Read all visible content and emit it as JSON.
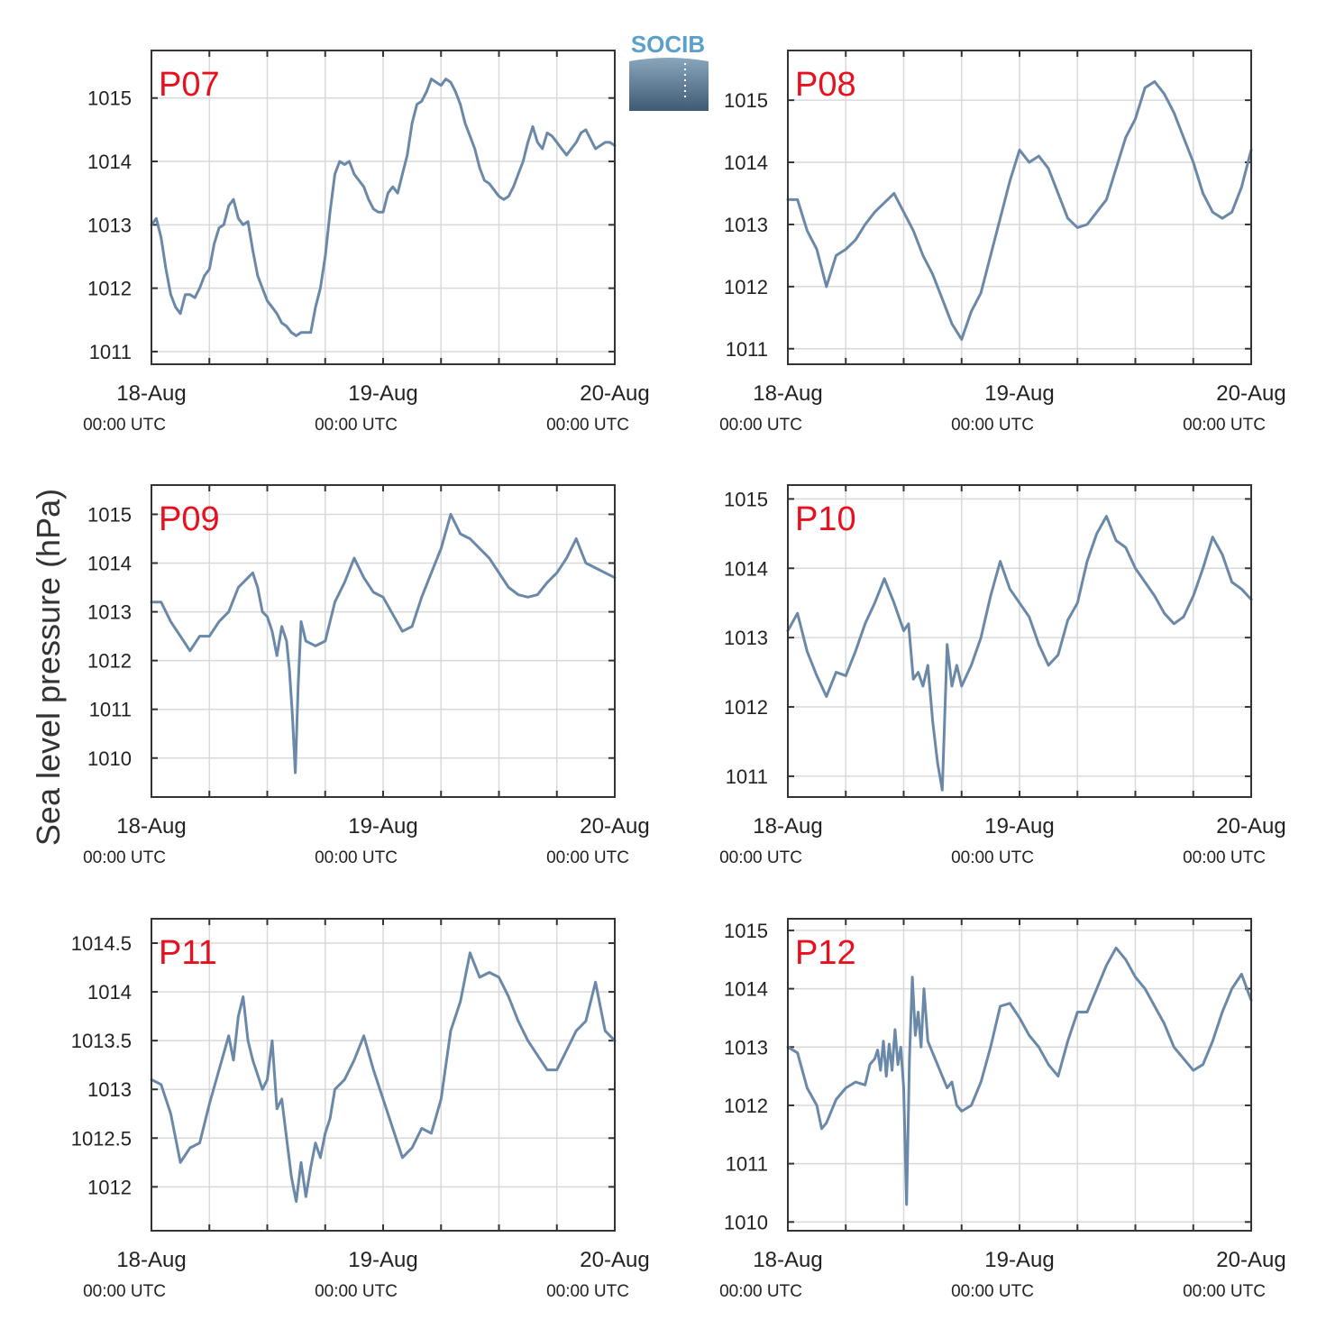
{
  "figure": {
    "ylabel": "Sea level pressure (hPa)",
    "logo_text": "SOCIB",
    "colors": {
      "line": "#6a88a8",
      "label": "#e8101e",
      "grid": "#d9d9d9",
      "logo_top": "#5aa0c8",
      "logo_bottom": "#3f5a72"
    }
  },
  "chart_data": [
    {
      "type": "line",
      "title": "P07",
      "xlabel": "",
      "ylabel": "Sea level pressure (hPa)",
      "xticks": [
        {
          "date": "18-Aug",
          "time": "00:00 UTC"
        },
        {
          "date": "19-Aug",
          "time": "00:00 UTC"
        },
        {
          "date": "20-Aug",
          "time": "00:00 UTC"
        }
      ],
      "xlim": [
        0,
        48
      ],
      "ylim": [
        1010.8,
        1015.75
      ],
      "yticks": [
        1011,
        1012,
        1013,
        1014,
        1015
      ],
      "ytick_labels": [
        "1011",
        "1012",
        "1013",
        "1014",
        "1015"
      ],
      "grid": true,
      "x": [
        0,
        0.5,
        1,
        1.5,
        2,
        2.5,
        3,
        3.5,
        4,
        4.5,
        5,
        5.5,
        6,
        6.5,
        7,
        7.5,
        8,
        8.5,
        9,
        9.5,
        10,
        10.5,
        11,
        11.5,
        12,
        12.5,
        13,
        13.5,
        14,
        14.5,
        15,
        15.5,
        16,
        16.5,
        17,
        17.5,
        18,
        18.5,
        19,
        19.5,
        20,
        20.5,
        21,
        21.5,
        22,
        22.5,
        23,
        23.5,
        24,
        24.5,
        25,
        25.5,
        26,
        26.5,
        27,
        27.5,
        28,
        28.5,
        29,
        29.5,
        30,
        30.5,
        31,
        31.5,
        32,
        32.5,
        33,
        33.5,
        34,
        34.5,
        35,
        35.5,
        36,
        36.5,
        37,
        37.5,
        38,
        38.5,
        39,
        39.5,
        40,
        40.5,
        41,
        41.5,
        42,
        42.5,
        43,
        43.5,
        44,
        44.5,
        45,
        45.5,
        46,
        46.5,
        47,
        47.5,
        48
      ],
      "y": [
        1013.0,
        1013.1,
        1012.8,
        1012.3,
        1011.9,
        1011.7,
        1011.6,
        1011.9,
        1011.9,
        1011.85,
        1012.0,
        1012.2,
        1012.3,
        1012.7,
        1012.95,
        1013.0,
        1013.3,
        1013.4,
        1013.1,
        1013.0,
        1013.05,
        1012.6,
        1012.2,
        1012.0,
        1011.8,
        1011.7,
        1011.6,
        1011.45,
        1011.4,
        1011.3,
        1011.25,
        1011.3,
        1011.3,
        1011.3,
        1011.7,
        1012.0,
        1012.5,
        1013.2,
        1013.8,
        1014.0,
        1013.95,
        1014.0,
        1013.8,
        1013.7,
        1013.6,
        1013.4,
        1013.25,
        1013.2,
        1013.2,
        1013.5,
        1013.6,
        1013.5,
        1013.8,
        1014.1,
        1014.6,
        1014.9,
        1014.95,
        1015.1,
        1015.3,
        1015.25,
        1015.2,
        1015.3,
        1015.25,
        1015.1,
        1014.9,
        1014.6,
        1014.4,
        1014.2,
        1013.9,
        1013.7,
        1013.65,
        1013.55,
        1013.45,
        1013.4,
        1013.45,
        1013.6,
        1013.8,
        1014.0,
        1014.3,
        1014.55,
        1014.3,
        1014.2,
        1014.45,
        1014.4,
        1014.3,
        1014.2,
        1014.1,
        1014.2,
        1014.3,
        1014.45,
        1014.5,
        1014.35,
        1014.2,
        1014.25,
        1014.3,
        1014.3,
        1014.25
      ]
    },
    {
      "type": "line",
      "title": "P08",
      "xlabel": "",
      "ylabel": "Sea level pressure (hPa)",
      "xticks": [
        {
          "date": "18-Aug",
          "time": "00:00 UTC"
        },
        {
          "date": "19-Aug",
          "time": "00:00 UTC"
        },
        {
          "date": "20-Aug",
          "time": "00:00 UTC"
        }
      ],
      "xlim": [
        0,
        48
      ],
      "ylim": [
        1010.75,
        1015.8
      ],
      "yticks": [
        1011,
        1012,
        1013,
        1014,
        1015
      ],
      "ytick_labels": [
        "1011",
        "1012",
        "1013",
        "1014",
        "1015"
      ],
      "grid": true,
      "x": [
        0,
        1,
        2,
        3,
        4,
        5,
        6,
        7,
        8,
        9,
        10,
        11,
        12,
        13,
        14,
        15,
        16,
        17,
        18,
        19,
        20,
        21,
        22,
        23,
        24,
        25,
        26,
        27,
        28,
        29,
        30,
        31,
        32,
        33,
        34,
        35,
        36,
        37,
        38,
        39,
        40,
        41,
        42,
        43,
        44,
        45,
        46,
        47,
        48
      ],
      "y": [
        1013.4,
        1013.4,
        1012.9,
        1012.6,
        1012.0,
        1012.5,
        1012.6,
        1012.75,
        1013.0,
        1013.2,
        1013.35,
        1013.5,
        1013.2,
        1012.9,
        1012.5,
        1012.2,
        1011.8,
        1011.4,
        1011.15,
        1011.6,
        1011.9,
        1012.5,
        1013.1,
        1013.7,
        1014.2,
        1014.0,
        1014.1,
        1013.9,
        1013.5,
        1013.1,
        1012.95,
        1013.0,
        1013.2,
        1013.4,
        1013.9,
        1014.4,
        1014.7,
        1015.2,
        1015.3,
        1015.1,
        1014.8,
        1014.4,
        1014.0,
        1013.5,
        1013.2,
        1013.1,
        1013.2,
        1013.6,
        1014.2
      ]
    },
    {
      "type": "line",
      "title": "P09",
      "xlabel": "",
      "ylabel": "Sea level pressure (hPa)",
      "xticks": [
        {
          "date": "18-Aug",
          "time": "00:00 UTC"
        },
        {
          "date": "19-Aug",
          "time": "00:00 UTC"
        },
        {
          "date": "20-Aug",
          "time": "00:00 UTC"
        }
      ],
      "xlim": [
        0,
        48
      ],
      "ylim": [
        1009.2,
        1015.6
      ],
      "yticks": [
        1010,
        1011,
        1012,
        1013,
        1014,
        1015
      ],
      "ytick_labels": [
        "1010",
        "1011",
        "1012",
        "1013",
        "1014",
        "1015"
      ],
      "grid": true,
      "x": [
        0,
        1,
        2,
        3,
        4,
        5,
        6,
        7,
        8,
        9,
        10,
        10.5,
        11,
        11.5,
        12,
        12.5,
        13,
        13.5,
        14,
        14.3,
        14.6,
        14.9,
        15.2,
        15.5,
        16,
        16.5,
        17,
        18,
        19,
        20,
        21,
        22,
        23,
        24,
        25,
        26,
        27,
        28,
        29,
        30,
        31,
        32,
        33,
        34,
        35,
        36,
        37,
        38,
        39,
        40,
        41,
        42,
        43,
        44,
        45,
        46,
        47,
        48
      ],
      "y": [
        1013.2,
        1013.2,
        1012.8,
        1012.5,
        1012.2,
        1012.5,
        1012.5,
        1012.8,
        1013.0,
        1013.5,
        1013.7,
        1013.8,
        1013.5,
        1013.0,
        1012.9,
        1012.6,
        1012.1,
        1012.7,
        1012.4,
        1011.8,
        1010.9,
        1009.7,
        1011.5,
        1012.8,
        1012.4,
        1012.35,
        1012.3,
        1012.4,
        1013.2,
        1013.6,
        1014.1,
        1013.7,
        1013.4,
        1013.3,
        1012.95,
        1012.6,
        1012.7,
        1013.3,
        1013.8,
        1014.3,
        1015.0,
        1014.6,
        1014.5,
        1014.3,
        1014.1,
        1013.8,
        1013.5,
        1013.35,
        1013.3,
        1013.35,
        1013.6,
        1013.8,
        1014.1,
        1014.5,
        1014.0,
        1013.9,
        1013.8,
        1013.7
      ]
    },
    {
      "type": "line",
      "title": "P10",
      "xlabel": "",
      "ylabel": "Sea level pressure (hPa)",
      "xticks": [
        {
          "date": "18-Aug",
          "time": "00:00 UTC"
        },
        {
          "date": "19-Aug",
          "time": "00:00 UTC"
        },
        {
          "date": "20-Aug",
          "time": "00:00 UTC"
        }
      ],
      "xlim": [
        0,
        48
      ],
      "ylim": [
        1010.7,
        1015.2
      ],
      "yticks": [
        1011,
        1012,
        1013,
        1014,
        1015
      ],
      "ytick_labels": [
        "1011",
        "1012",
        "1013",
        "1014",
        "1015"
      ],
      "grid": true,
      "x": [
        0,
        1,
        2,
        3,
        4,
        5,
        6,
        7,
        8,
        9,
        10,
        11,
        12,
        12.5,
        13,
        13.5,
        14,
        14.5,
        15,
        15.5,
        16,
        16.5,
        17,
        17.5,
        18,
        19,
        20,
        21,
        22,
        23,
        24,
        25,
        26,
        27,
        28,
        29,
        30,
        31,
        32,
        33,
        34,
        35,
        36,
        37,
        38,
        39,
        40,
        41,
        42,
        43,
        44,
        45,
        46,
        47,
        48
      ],
      "y": [
        1013.1,
        1013.35,
        1012.8,
        1012.45,
        1012.15,
        1012.5,
        1012.45,
        1012.8,
        1013.2,
        1013.5,
        1013.85,
        1013.5,
        1013.1,
        1013.2,
        1012.4,
        1012.5,
        1012.3,
        1012.6,
        1011.8,
        1011.2,
        1010.8,
        1012.9,
        1012.3,
        1012.6,
        1012.3,
        1012.6,
        1013.0,
        1013.6,
        1014.1,
        1013.7,
        1013.5,
        1013.3,
        1012.9,
        1012.6,
        1012.75,
        1013.25,
        1013.5,
        1014.1,
        1014.5,
        1014.75,
        1014.4,
        1014.3,
        1014.0,
        1013.8,
        1013.6,
        1013.35,
        1013.2,
        1013.3,
        1013.6,
        1014.0,
        1014.45,
        1014.2,
        1013.8,
        1013.7,
        1013.55
      ]
    },
    {
      "type": "line",
      "title": "P11",
      "xlabel": "",
      "ylabel": "Sea level pressure (hPa)",
      "xticks": [
        {
          "date": "18-Aug",
          "time": "00:00 UTC"
        },
        {
          "date": "19-Aug",
          "time": "00:00 UTC"
        },
        {
          "date": "20-Aug",
          "time": "00:00 UTC"
        }
      ],
      "xlim": [
        0,
        48
      ],
      "ylim": [
        1011.55,
        1014.75
      ],
      "yticks": [
        1012,
        1012.5,
        1013,
        1013.5,
        1014,
        1014.5
      ],
      "ytick_labels": [
        "1012",
        "1012.5",
        "1013",
        "1013.5",
        "1014",
        "1014.5"
      ],
      "grid": true,
      "x": [
        0,
        1,
        2,
        3,
        4,
        5,
        6,
        7,
        8,
        8.5,
        9,
        9.5,
        10,
        10.5,
        11,
        11.5,
        12,
        12.5,
        13,
        13.5,
        14,
        14.5,
        15,
        15.5,
        16,
        16.5,
        17,
        17.5,
        18,
        18.5,
        19,
        20,
        21,
        22,
        23,
        24,
        25,
        26,
        27,
        28,
        29,
        30,
        31,
        32,
        33,
        34,
        35,
        36,
        37,
        38,
        39,
        40,
        41,
        42,
        43,
        44,
        45,
        46,
        47,
        48
      ],
      "y": [
        1013.1,
        1013.05,
        1012.75,
        1012.25,
        1012.4,
        1012.45,
        1012.85,
        1013.2,
        1013.55,
        1013.3,
        1013.75,
        1013.95,
        1013.5,
        1013.3,
        1013.15,
        1013.0,
        1013.1,
        1013.5,
        1012.8,
        1012.9,
        1012.5,
        1012.1,
        1011.85,
        1012.25,
        1011.9,
        1012.2,
        1012.45,
        1012.3,
        1012.55,
        1012.7,
        1013.0,
        1013.1,
        1013.3,
        1013.55,
        1013.2,
        1012.9,
        1012.6,
        1012.3,
        1012.4,
        1012.6,
        1012.55,
        1012.9,
        1013.6,
        1013.9,
        1014.4,
        1014.15,
        1014.2,
        1014.15,
        1013.95,
        1013.7,
        1013.5,
        1013.35,
        1013.2,
        1013.2,
        1013.4,
        1013.6,
        1013.7,
        1014.1,
        1013.6,
        1013.5
      ]
    },
    {
      "type": "line",
      "title": "P12",
      "xlabel": "",
      "ylabel": "Sea level pressure (hPa)",
      "xticks": [
        {
          "date": "18-Aug",
          "time": "00:00 UTC"
        },
        {
          "date": "19-Aug",
          "time": "00:00 UTC"
        },
        {
          "date": "20-Aug",
          "time": "00:00 UTC"
        }
      ],
      "xlim": [
        0,
        48
      ],
      "ylim": [
        1009.85,
        1015.2
      ],
      "yticks": [
        1010,
        1011,
        1012,
        1013,
        1014,
        1015
      ],
      "ytick_labels": [
        "1010",
        "1011",
        "1012",
        "1013",
        "1014",
        "1015"
      ],
      "grid": true,
      "x": [
        0,
        1,
        2,
        3,
        3.5,
        4,
        5,
        6,
        7,
        8,
        8.5,
        9,
        9.3,
        9.6,
        9.9,
        10.2,
        10.5,
        10.8,
        11.1,
        11.4,
        11.7,
        12,
        12.3,
        12.6,
        12.9,
        13.2,
        13.5,
        13.8,
        14.1,
        14.5,
        15,
        15.5,
        16,
        16.5,
        17,
        17.5,
        18,
        19,
        20,
        21,
        22,
        23,
        24,
        25,
        26,
        27,
        28,
        29,
        30,
        31,
        32,
        33,
        34,
        35,
        36,
        37,
        38,
        39,
        40,
        41,
        42,
        43,
        44,
        45,
        46,
        47,
        48
      ],
      "y": [
        1013.0,
        1012.9,
        1012.3,
        1012.0,
        1011.6,
        1011.7,
        1012.1,
        1012.3,
        1012.4,
        1012.35,
        1012.7,
        1012.8,
        1012.95,
        1012.6,
        1013.1,
        1012.5,
        1013.05,
        1012.6,
        1013.3,
        1012.7,
        1013.0,
        1012.3,
        1010.3,
        1012.8,
        1014.2,
        1013.2,
        1013.6,
        1013.0,
        1014.0,
        1013.1,
        1012.9,
        1012.7,
        1012.5,
        1012.3,
        1012.4,
        1012.0,
        1011.9,
        1012.0,
        1012.4,
        1013.0,
        1013.7,
        1013.75,
        1013.5,
        1013.2,
        1013.0,
        1012.7,
        1012.5,
        1013.1,
        1013.6,
        1013.6,
        1014.0,
        1014.4,
        1014.7,
        1014.5,
        1014.2,
        1014.0,
        1013.7,
        1013.4,
        1013.0,
        1012.8,
        1012.6,
        1012.7,
        1013.1,
        1013.6,
        1014.0,
        1014.25,
        1013.8
      ]
    }
  ]
}
